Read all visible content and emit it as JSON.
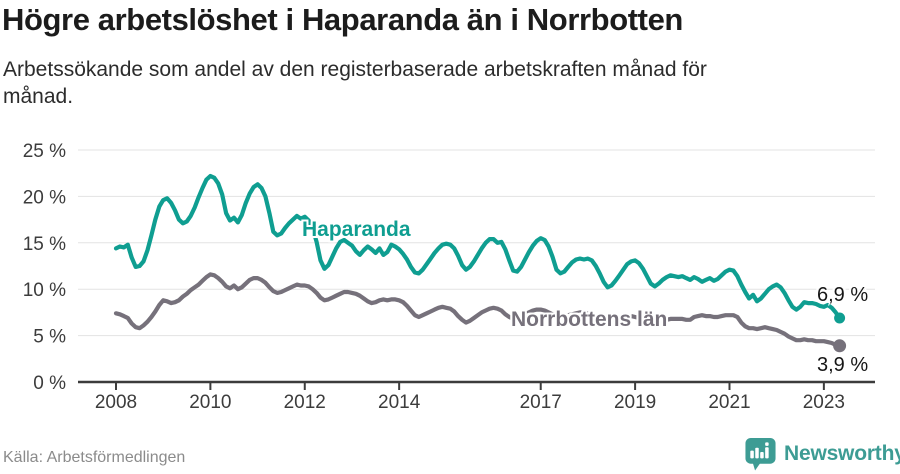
{
  "header": {
    "title": "Högre arbetslöshet i Haparanda än i Norrbotten",
    "subtitle": "Arbetssökande som andel av den registerbaserade arbetskraften månad för månad."
  },
  "chart_data": {
    "type": "line",
    "title": "Högre arbetslöshet i Haparanda än i Norrbotten",
    "subtitle": "Arbetssökande som andel av den registerbaserade arbetskraften månad för månad.",
    "x_start": "2008-01",
    "x_end": "2023-05",
    "frequency": "monthly",
    "ylim": [
      0,
      25
    ],
    "yticks": [
      0,
      5,
      10,
      15,
      20,
      25
    ],
    "ytick_suffix": " %",
    "xticks": [
      2008,
      2010,
      2012,
      2014,
      2017,
      2019,
      2021,
      2023
    ],
    "grid": "horizontal",
    "grid_color": "#e3e3e3",
    "axis_color": "#3c3c3c",
    "legend_position": "inline-labels",
    "series": [
      {
        "id": "haparanda",
        "name": "Haparanda",
        "color": "#0f9e91",
        "end_label": "6,9 %",
        "end_value": 6.9,
        "values": [
          14.4,
          14.6,
          14.5,
          14.8,
          13.4,
          12.4,
          12.5,
          13.0,
          14.2,
          15.8,
          17.5,
          18.9,
          19.6,
          19.8,
          19.3,
          18.5,
          17.5,
          17.1,
          17.3,
          17.9,
          18.8,
          19.9,
          20.9,
          21.8,
          22.2,
          22.0,
          21.4,
          20.2,
          18.2,
          17.4,
          17.7,
          17.2,
          18.0,
          19.3,
          20.3,
          21.0,
          21.3,
          20.9,
          20.0,
          18.2,
          16.2,
          15.8,
          16.0,
          16.6,
          17.1,
          17.5,
          17.9,
          17.6,
          17.8,
          17.4,
          16.6,
          15.1,
          13.1,
          12.2,
          12.6,
          13.5,
          14.4,
          15.1,
          15.3,
          15.0,
          14.7,
          14.1,
          13.7,
          14.2,
          14.6,
          14.3,
          13.9,
          14.4,
          13.7,
          14.0,
          14.8,
          14.6,
          14.3,
          13.8,
          13.2,
          12.4,
          11.8,
          11.7,
          12.1,
          12.7,
          13.3,
          13.9,
          14.4,
          14.8,
          14.9,
          14.8,
          14.4,
          13.6,
          12.6,
          12.1,
          12.4,
          13.0,
          13.7,
          14.4,
          15.0,
          15.4,
          15.4,
          15.0,
          15.1,
          14.3,
          13.1,
          12.0,
          11.9,
          12.4,
          13.2,
          14.0,
          14.7,
          15.2,
          15.5,
          15.3,
          14.6,
          13.5,
          12.1,
          11.7,
          11.9,
          12.4,
          12.9,
          13.2,
          13.3,
          13.2,
          13.3,
          13.1,
          12.5,
          11.7,
          10.8,
          10.2,
          10.4,
          10.9,
          11.5,
          12.1,
          12.7,
          13.0,
          13.1,
          12.8,
          12.2,
          11.4,
          10.6,
          10.3,
          10.6,
          11.0,
          11.3,
          11.5,
          11.4,
          11.3,
          11.4,
          11.2,
          11.0,
          11.3,
          11.1,
          10.8,
          11.0,
          11.2,
          10.9,
          11.1,
          11.5,
          11.9,
          12.1,
          12.0,
          11.4,
          10.5,
          9.7,
          9.0,
          9.4,
          8.7,
          9.0,
          9.5,
          10.0,
          10.3,
          10.5,
          10.2,
          9.6,
          8.8,
          8.1,
          7.8,
          8.1,
          8.6,
          8.5,
          8.5,
          8.4,
          8.2,
          8.1,
          8.3,
          8.0,
          7.5,
          6.9
        ]
      },
      {
        "id": "norrbotten",
        "name": "Norrbottens län",
        "color": "#76717b",
        "end_label": "3,9 %",
        "end_value": 3.9,
        "values": [
          7.4,
          7.3,
          7.1,
          6.9,
          6.3,
          5.9,
          5.8,
          6.1,
          6.5,
          7.0,
          7.6,
          8.3,
          8.8,
          8.7,
          8.5,
          8.6,
          8.8,
          9.2,
          9.5,
          9.9,
          10.2,
          10.5,
          10.9,
          11.3,
          11.6,
          11.5,
          11.2,
          10.8,
          10.3,
          10.1,
          10.4,
          10.0,
          10.2,
          10.6,
          11.0,
          11.2,
          11.2,
          11.0,
          10.7,
          10.2,
          9.8,
          9.6,
          9.7,
          9.9,
          10.1,
          10.3,
          10.5,
          10.4,
          10.4,
          10.3,
          10.0,
          9.6,
          9.1,
          8.8,
          8.9,
          9.1,
          9.3,
          9.5,
          9.7,
          9.7,
          9.6,
          9.5,
          9.3,
          9.0,
          8.7,
          8.5,
          8.6,
          8.8,
          8.9,
          8.8,
          8.9,
          8.9,
          8.8,
          8.6,
          8.2,
          7.7,
          7.2,
          7.0,
          7.2,
          7.4,
          7.6,
          7.8,
          8.0,
          8.1,
          8.0,
          7.9,
          7.6,
          7.1,
          6.7,
          6.4,
          6.6,
          6.9,
          7.2,
          7.5,
          7.7,
          7.9,
          8.0,
          7.9,
          7.7,
          7.3,
          7.0,
          6.8,
          6.9,
          7.1,
          7.3,
          7.5,
          7.7,
          7.8,
          7.8,
          7.7,
          7.5,
          7.3,
          7.1,
          7.0,
          7.1,
          7.2,
          7.3,
          7.4,
          7.5,
          7.5,
          7.4,
          7.3,
          7.1,
          6.9,
          6.7,
          6.6,
          6.7,
          6.8,
          6.9,
          7.0,
          7.1,
          7.1,
          7.0,
          6.9,
          6.8,
          6.6,
          6.5,
          6.4,
          6.5,
          6.6,
          6.7,
          6.8,
          6.8,
          6.8,
          6.8,
          6.7,
          6.7,
          7.0,
          7.1,
          7.2,
          7.1,
          7.1,
          7.0,
          7.0,
          7.1,
          7.2,
          7.2,
          7.2,
          7.0,
          6.4,
          6.0,
          5.8,
          5.8,
          5.7,
          5.8,
          5.9,
          5.8,
          5.7,
          5.6,
          5.4,
          5.2,
          4.9,
          4.7,
          4.5,
          4.5,
          4.6,
          4.5,
          4.5,
          4.4,
          4.4,
          4.4,
          4.3,
          4.2,
          4.0,
          3.9
        ]
      }
    ]
  },
  "footer": {
    "source": "Källa: Arbetsförmedlingen",
    "brand": "Newsworthy"
  }
}
